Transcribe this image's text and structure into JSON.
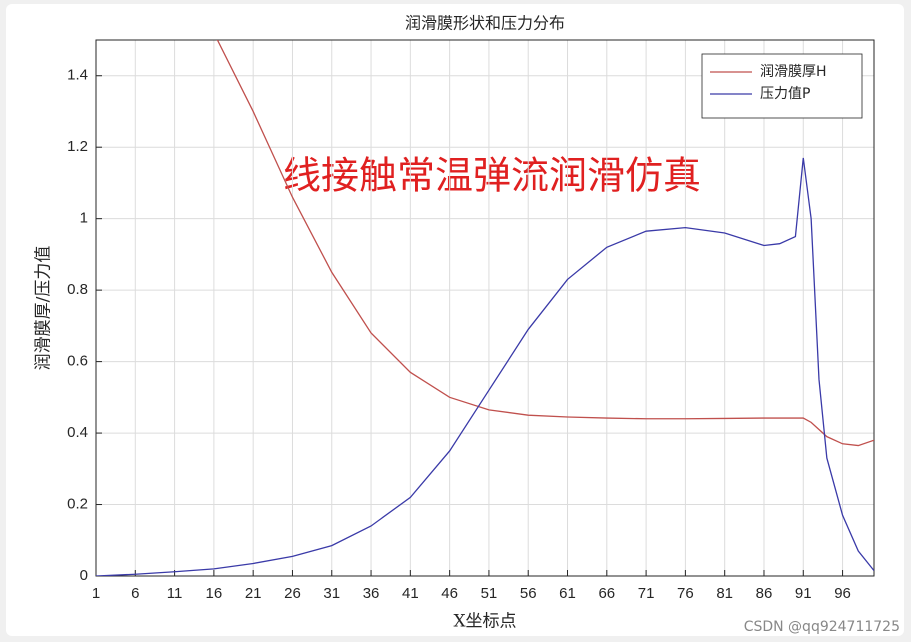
{
  "chart_data": {
    "type": "line",
    "title": "润滑膜形状和压力分布",
    "xlabel": "X坐标点",
    "ylabel": "润滑膜厚/压力值",
    "annotation": "线接触常温弹流润滑仿真",
    "watermark": "CSDN @qq924711725",
    "xlim": [
      1,
      100
    ],
    "ylim": [
      0,
      1.5
    ],
    "xticks": [
      1,
      6,
      11,
      16,
      21,
      26,
      31,
      36,
      41,
      46,
      51,
      56,
      61,
      66,
      71,
      76,
      81,
      86,
      91,
      96
    ],
    "yticks": [
      0,
      0.2,
      0.4,
      0.6,
      0.8,
      1,
      1.2,
      1.4
    ],
    "grid": true,
    "legend": "northeast",
    "series": [
      {
        "name": "润滑膜厚H",
        "color": "#c0504d",
        "x": [
          16,
          21,
          26,
          31,
          36,
          41,
          46,
          51,
          56,
          61,
          66,
          71,
          76,
          81,
          86,
          91,
          92,
          94,
          96,
          98,
          100
        ],
        "values": [
          1.52,
          1.3,
          1.06,
          0.85,
          0.68,
          0.57,
          0.5,
          0.465,
          0.45,
          0.445,
          0.442,
          0.44,
          0.44,
          0.441,
          0.442,
          0.442,
          0.43,
          0.39,
          0.37,
          0.365,
          0.38
        ]
      },
      {
        "name": "压力值P",
        "color": "#3a3aa8",
        "x": [
          1,
          6,
          11,
          16,
          21,
          26,
          31,
          36,
          41,
          46,
          51,
          56,
          61,
          66,
          71,
          76,
          81,
          86,
          88,
          90,
          91,
          92,
          93,
          94,
          96,
          98,
          100
        ],
        "values": [
          0,
          0.005,
          0.012,
          0.02,
          0.035,
          0.055,
          0.085,
          0.14,
          0.22,
          0.35,
          0.52,
          0.69,
          0.83,
          0.92,
          0.965,
          0.975,
          0.96,
          0.925,
          0.93,
          0.95,
          1.17,
          1.0,
          0.55,
          0.33,
          0.17,
          0.07,
          0.015
        ]
      }
    ]
  }
}
